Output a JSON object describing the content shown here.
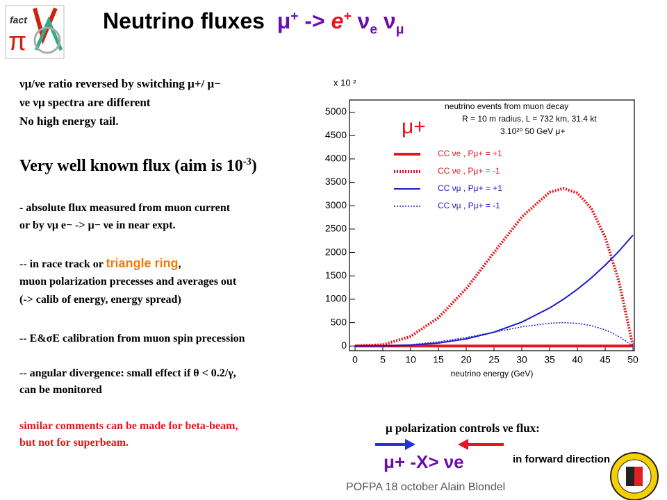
{
  "title": {
    "text": "Neutrino fluxes",
    "mu": "μ",
    "mu_sup": "+",
    "arrow": "->",
    "e": "e",
    "e_sup": "+",
    "nu1": "ν",
    "nu1_sub": "e",
    "nu2": "ν",
    "nu2_sub": "μ"
  },
  "notes_top": [
    "νμ/νe ratio reversed by switching μ+/ μ−",
    "νe νμ spectra are different",
    "No high energy tail."
  ],
  "headline": {
    "text": "Very well known flux (aim is 10",
    "sup": "-3",
    "close": ")"
  },
  "notes": [
    "- absolute flux measured from muon current",
    " or by νμ e− -> μ−  νe in near expt."
  ],
  "race": {
    "before": "-- in race track or ",
    "highlight": "triangle ring",
    "after": ","
  },
  "notes_more": [
    "muon polarization precesses and averages out",
    "(-> calib of energy, energy spread)",
    "-- E&σE calibration from muon spin precession",
    "-- angular divergence: small effect if θ < 0.2/γ,",
    "can be monitored"
  ],
  "notes_red": [
    "similar comments can be made for beta-beam,",
    " but not for superbeam."
  ],
  "bottom": {
    "caption": "μ polarization controls νe flux:",
    "relation": "μ+ -X> νe",
    "direction": "in forward direction"
  },
  "footer": "POFPA 18 october  Alain Blondel",
  "chart_data": {
    "type": "line",
    "title": "neutrino events from muon decay",
    "info": [
      "R = 10 m radius, L = 732 km, 31.4 kt",
      "3.10²⁰ 50 GeV μ+"
    ],
    "legend_title": "μ+",
    "multiplier": "x 10 ²",
    "xlabel": "neutrino energy (GeV)",
    "x": [
      0,
      5,
      10,
      15,
      20,
      25,
      30,
      35,
      37.5,
      40,
      42.5,
      45,
      47.5,
      50
    ],
    "series": [
      {
        "name": "CC νe , Pμ+ = +1",
        "color": "#e8141c",
        "style": "solid",
        "values": [
          0,
          0,
          0,
          0,
          0,
          0,
          0,
          0,
          0,
          0,
          0,
          0,
          0,
          0
        ]
      },
      {
        "name": "CC νe , Pμ+ = -1",
        "color": "#e8141c",
        "style": "dotted",
        "values": [
          0,
          29,
          204,
          604,
          1227,
          1997,
          2760,
          3288,
          3370,
          3272,
          2943,
          2329,
          1370,
          0
        ]
      },
      {
        "name": "CC νμ , Pμ+ = +1",
        "color": "#1a1acc",
        "style": "solid",
        "values": [
          0,
          2,
          19,
          64,
          152,
          296,
          512,
          813,
          1000,
          1213,
          1455,
          1728,
          2031,
          2370
        ]
      },
      {
        "name": "CC νμ , Pμ+ = -1",
        "color": "#1a1acc",
        "style": "dotted",
        "values": [
          0,
          4,
          30,
          90,
          182,
          296,
          410,
          488,
          500,
          485,
          437,
          346,
          203,
          0
        ]
      }
    ],
    "xlim": [
      -1,
      50.25
    ],
    "ylim": [
      -100,
      5260
    ],
    "xticks": [
      0,
      5,
      10,
      15,
      20,
      25,
      30,
      35,
      40,
      45,
      50
    ],
    "yticks": [
      0,
      500,
      1000,
      1500,
      2000,
      2500,
      3000,
      3500,
      4000,
      4500,
      5000
    ]
  }
}
